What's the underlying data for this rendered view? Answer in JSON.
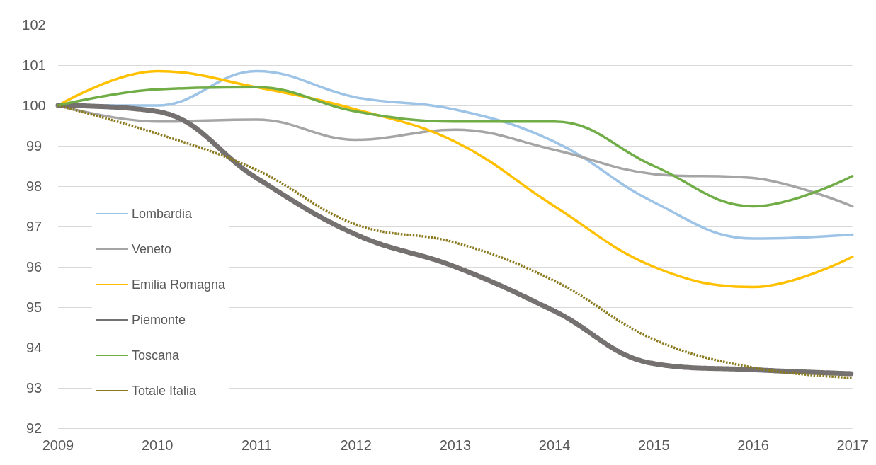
{
  "chart_data": {
    "type": "line",
    "categories": [
      "2009",
      "2010",
      "2011",
      "2012",
      "2013",
      "2014",
      "2015",
      "2016",
      "2017"
    ],
    "series": [
      {
        "name": "Lombardia",
        "color": "#9dc3e6",
        "values": [
          100,
          100.0,
          100.85,
          100.2,
          99.9,
          99.1,
          97.6,
          96.7,
          96.8
        ]
      },
      {
        "name": "Veneto",
        "color": "#a5a5a5",
        "values": [
          100,
          99.6,
          99.65,
          99.15,
          99.4,
          98.9,
          98.3,
          98.2,
          97.5
        ]
      },
      {
        "name": "Emilia Romagna",
        "color": "#ffc000",
        "values": [
          100,
          100.85,
          100.45,
          99.9,
          99.1,
          97.5,
          96.0,
          95.5,
          96.25
        ]
      },
      {
        "name": "Piemonte",
        "color": "#767171",
        "line_style": "dashed",
        "values": [
          100,
          99.85,
          98.2,
          96.8,
          96.0,
          94.9,
          93.6,
          93.45,
          93.35
        ]
      },
      {
        "name": "Toscana",
        "color": "#70ad47",
        "values": [
          100,
          100.4,
          100.45,
          99.85,
          99.6,
          99.6,
          98.5,
          97.5,
          98.25
        ]
      },
      {
        "name": "Totale Italia",
        "color": "#8b7a1e",
        "line_style": "dotted",
        "values": [
          100,
          99.3,
          98.4,
          97.05,
          96.6,
          95.65,
          94.2,
          93.5,
          93.25
        ]
      }
    ],
    "ylim": [
      92,
      102
    ],
    "yticks": [
      92,
      93,
      94,
      95,
      96,
      97,
      98,
      99,
      100,
      101,
      102
    ],
    "grid": "y",
    "legend": "left",
    "marker": "none",
    "line_style": "solid"
  }
}
